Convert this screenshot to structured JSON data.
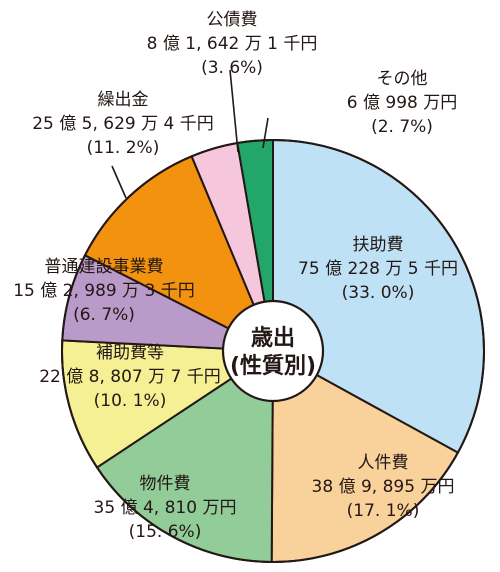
{
  "chart_data": {
    "type": "pie",
    "start": "top",
    "direction": "clockwise",
    "center_label": [
      "歳出",
      "(性質別)"
    ],
    "slices": [
      {
        "name": "扶助費",
        "amount": "75 億 228 万 5 千円",
        "percent": 33.0,
        "percent_label": "(33. 0%)",
        "color": "#bfe1f6"
      },
      {
        "name": "人件費",
        "amount": "38 億 9, 895 万円",
        "percent": 17.1,
        "percent_label": "(17. 1%)",
        "color": "#f9d19b"
      },
      {
        "name": "物件費",
        "amount": "35 億 4, 810 万円",
        "percent": 15.6,
        "percent_label": "(15. 6%)",
        "color": "#92cc98"
      },
      {
        "name": "補助費等",
        "amount": "22 億 8, 807 万 7 千円",
        "percent": 10.1,
        "percent_label": "(10. 1%)",
        "color": "#f4f093"
      },
      {
        "name": "普通建設事業費",
        "amount": "15 億 2, 989 万 3 千円",
        "percent": 6.7,
        "percent_label": "(6. 7%)",
        "color": "#ba9ac8"
      },
      {
        "name": "繰出金",
        "amount": "25 億 5, 629 万 4 千円",
        "percent": 11.2,
        "percent_label": "(11. 2%)",
        "color": "#f3920f"
      },
      {
        "name": "公債費",
        "amount": "8 億 1, 642 万 1 千円",
        "percent": 3.6,
        "percent_label": "(3. 6%)",
        "color": "#f6c6dc"
      },
      {
        "name": "その他",
        "amount": "6 億 998 万円",
        "percent": 2.7,
        "percent_label": "(2. 7%)",
        "color": "#22a66a"
      }
    ]
  }
}
